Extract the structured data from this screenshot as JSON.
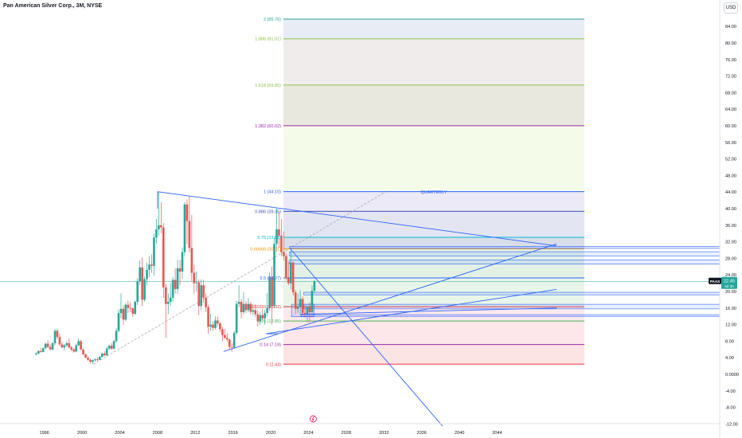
{
  "header": {
    "title": "Pan American Silver Corp., 3M, NYSE",
    "currency": "USD"
  },
  "price_label": {
    "ticker": "PAAS",
    "price": "22.45",
    "countdown": "4d 3h"
  },
  "colors": {
    "up": "#26a69a",
    "down": "#ef5350",
    "trendline": "#2962ff",
    "price_line": "#26a69a"
  },
  "chart_data": {
    "type": "candlestick",
    "interval": "3M",
    "ylim": [
      -12,
      88
    ],
    "yticks": [
      "84.00",
      "80.00",
      "76.00",
      "72.00",
      "68.00",
      "64.00",
      "60.00",
      "56.00",
      "52.00",
      "48.00",
      "44.00",
      "40.00",
      "36.00",
      "32.00",
      "28.00",
      "24.00",
      "20.00",
      "16.00",
      "12.00",
      "8.00",
      "4.00",
      "0.0000",
      "-4.00",
      "-8.00",
      "-12.00"
    ],
    "xticks": [
      "1996",
      "2000",
      "2004",
      "2008",
      "2012",
      "2016",
      "2020",
      "2024",
      "2028",
      "2032",
      "2036",
      "2040",
      "2044"
    ],
    "x_range": [
      1991.3,
      2050.3
    ],
    "fib_label": "QUARTERLY",
    "fib_levels": [
      {
        "label": "0 (2.44)",
        "value": 2.44,
        "color": "#f23645",
        "fill": "#fce4e4"
      },
      {
        "label": "0.14 (7.19)",
        "value": 7.19,
        "color": "#9c27b0",
        "fill": "#fde7ea"
      },
      {
        "label": "0.25 (12.85)",
        "value": 12.85,
        "color": "#4caf50",
        "fill": "#fbe9ec"
      },
      {
        "label": "0.333333 (16.32)",
        "value": 16.32,
        "color": "#e53935",
        "fill": "#e8f5e9"
      },
      {
        "label": "0.5 (23.27)",
        "value": 23.27,
        "color": "#2962ff",
        "fill": "#e3f1e5"
      },
      {
        "label": "0.66666 (30.31)",
        "value": 30.31,
        "color": "#ff9800",
        "fill": "#d9dde9"
      },
      {
        "label": "0.75 (33.08)",
        "value": 33.08,
        "color": "#00bcd4",
        "fill": "#e4e5f2"
      },
      {
        "label": "0.886 (39.35)",
        "value": 39.35,
        "color": "#3f51b5",
        "fill": "#ebeaf6"
      },
      {
        "label": "1 (44.10)",
        "value": 44.1,
        "color": "#2962ff",
        "fill": "#f4fbe9"
      },
      {
        "label": "1.382 (60.02)",
        "value": 60.02,
        "color": "#9c27b0",
        "fill": "#e9e8df"
      },
      {
        "label": "1.618 (69.85)",
        "value": 69.85,
        "color": "#8bc34a",
        "fill": "#f1ecec"
      },
      {
        "label": "1.886 (81.01)",
        "value": 81.01,
        "color": "#8bc34a",
        "fill": "#e8ecf5"
      },
      {
        "label": "2 (85.76)",
        "value": 85.76,
        "color": "#26a69a",
        "fill": ""
      }
    ],
    "last_price": 22.45,
    "candles": [
      [
        1995.125,
        4.8,
        5.4,
        4.6,
        5.0
      ],
      [
        1995.375,
        5.0,
        5.8,
        4.8,
        5.6
      ],
      [
        1995.625,
        5.6,
        6.4,
        5.2,
        5.4
      ],
      [
        1995.875,
        5.4,
        6.5,
        5.3,
        6.3
      ],
      [
        1996.125,
        6.3,
        7.6,
        6.0,
        7.4
      ],
      [
        1996.375,
        7.4,
        8.2,
        6.4,
        6.6
      ],
      [
        1996.625,
        6.6,
        7.2,
        5.8,
        6.0
      ],
      [
        1996.875,
        6.0,
        7.8,
        5.8,
        7.5
      ],
      [
        1997.125,
        7.5,
        11.0,
        7.0,
        10.5
      ],
      [
        1997.375,
        10.5,
        11.0,
        8.5,
        9.0
      ],
      [
        1997.625,
        9.0,
        9.8,
        6.9,
        7.2
      ],
      [
        1997.875,
        7.2,
        7.8,
        6.3,
        6.5
      ],
      [
        1998.125,
        6.5,
        7.3,
        5.8,
        7.0
      ],
      [
        1998.375,
        7.0,
        8.0,
        6.6,
        7.5
      ],
      [
        1998.625,
        7.5,
        8.6,
        6.2,
        6.5
      ],
      [
        1998.875,
        6.5,
        6.9,
        5.6,
        6.0
      ],
      [
        1999.125,
        6.0,
        6.4,
        5.2,
        5.5
      ],
      [
        1999.375,
        5.5,
        7.4,
        5.3,
        7.0
      ],
      [
        1999.625,
        7.0,
        8.6,
        6.8,
        8.0
      ],
      [
        1999.875,
        8.0,
        8.3,
        5.8,
        6.0
      ],
      [
        2000.125,
        6.0,
        6.2,
        4.6,
        4.8
      ],
      [
        2000.375,
        4.8,
        5.0,
        3.9,
        4.0
      ],
      [
        2000.625,
        4.0,
        4.4,
        3.2,
        3.5
      ],
      [
        2000.875,
        3.5,
        3.8,
        2.6,
        3.0
      ],
      [
        2001.125,
        3.0,
        3.6,
        2.44,
        3.4
      ],
      [
        2001.375,
        3.4,
        3.9,
        3.0,
        3.6
      ],
      [
        2001.625,
        3.6,
        4.1,
        3.2,
        3.5
      ],
      [
        2001.875,
        3.5,
        4.4,
        3.4,
        4.2
      ],
      [
        2002.125,
        4.2,
        5.3,
        4.0,
        5.0
      ],
      [
        2002.375,
        5.0,
        5.6,
        4.4,
        4.6
      ],
      [
        2002.625,
        4.6,
        6.6,
        4.4,
        6.2
      ],
      [
        2002.875,
        6.2,
        7.2,
        5.9,
        6.9
      ],
      [
        2003.125,
        6.9,
        7.6,
        5.9,
        6.2
      ],
      [
        2003.375,
        6.2,
        8.3,
        6.0,
        8.0
      ],
      [
        2003.625,
        8.0,
        11.2,
        7.6,
        10.5
      ],
      [
        2003.875,
        10.5,
        15.6,
        10.2,
        14.8
      ],
      [
        2004.125,
        14.8,
        19.5,
        13.5,
        15.8
      ],
      [
        2004.375,
        15.8,
        16.6,
        12.0,
        13.2
      ],
      [
        2004.625,
        13.2,
        17.2,
        12.8,
        16.8
      ],
      [
        2004.875,
        16.8,
        17.8,
        14.8,
        16.0
      ],
      [
        2005.125,
        16.0,
        17.4,
        15.0,
        15.9
      ],
      [
        2005.375,
        15.9,
        16.2,
        13.8,
        14.6
      ],
      [
        2005.625,
        14.6,
        17.8,
        14.3,
        17.5
      ],
      [
        2005.875,
        17.5,
        23.2,
        16.8,
        22.5
      ],
      [
        2006.125,
        22.5,
        27.5,
        21.5,
        25.8
      ],
      [
        2006.375,
        25.8,
        28.2,
        16.5,
        18.0
      ],
      [
        2006.625,
        18.0,
        23.6,
        17.5,
        23.0
      ],
      [
        2006.875,
        23.0,
        27.0,
        21.5,
        25.2
      ],
      [
        2007.125,
        25.2,
        28.5,
        23.5,
        26.5
      ],
      [
        2007.375,
        26.5,
        29.0,
        24.5,
        26.2
      ],
      [
        2007.625,
        26.2,
        34.0,
        23.8,
        33.0
      ],
      [
        2007.875,
        33.0,
        37.5,
        31.5,
        35.0
      ],
      [
        2008.125,
        35.0,
        44.1,
        33.5,
        36.0
      ],
      [
        2008.375,
        36.0,
        41.6,
        34.0,
        35.5
      ],
      [
        2008.625,
        35.5,
        36.5,
        18.5,
        21.0
      ],
      [
        2008.875,
        21.0,
        21.8,
        8.8,
        17.0
      ],
      [
        2009.125,
        17.0,
        19.6,
        14.5,
        17.5
      ],
      [
        2009.375,
        17.5,
        22.0,
        16.5,
        18.5
      ],
      [
        2009.625,
        18.5,
        23.5,
        17.5,
        22.8
      ],
      [
        2009.875,
        22.8,
        25.6,
        19.5,
        20.6
      ],
      [
        2010.125,
        20.6,
        27.6,
        19.5,
        25.6
      ],
      [
        2010.375,
        25.6,
        27.6,
        21.5,
        24.8
      ],
      [
        2010.625,
        24.8,
        30.6,
        23.0,
        29.5
      ],
      [
        2010.875,
        29.5,
        41.6,
        28.5,
        41.0
      ],
      [
        2011.125,
        41.0,
        42.2,
        31.5,
        37.0
      ],
      [
        2011.375,
        37.0,
        43.0,
        29.5,
        30.5
      ],
      [
        2011.625,
        30.5,
        38.5,
        22.5,
        24.5
      ],
      [
        2011.875,
        24.5,
        26.5,
        19.5,
        22.0
      ],
      [
        2012.125,
        22.0,
        24.8,
        20.0,
        22.2
      ],
      [
        2012.375,
        22.2,
        22.9,
        14.3,
        16.5
      ],
      [
        2012.625,
        16.5,
        22.9,
        15.5,
        21.5
      ],
      [
        2012.875,
        21.5,
        22.8,
        17.2,
        18.5
      ],
      [
        2013.125,
        18.5,
        19.6,
        15.0,
        16.2
      ],
      [
        2013.375,
        16.2,
        16.8,
        9.8,
        11.5
      ],
      [
        2013.625,
        11.5,
        14.6,
        10.5,
        12.0
      ],
      [
        2013.875,
        12.0,
        12.9,
        10.5,
        11.2
      ],
      [
        2014.125,
        11.2,
        14.0,
        10.8,
        13.0
      ],
      [
        2014.375,
        13.0,
        13.9,
        11.6,
        12.3
      ],
      [
        2014.625,
        12.3,
        12.6,
        10.2,
        10.9
      ],
      [
        2014.875,
        10.9,
        11.4,
        8.0,
        9.5
      ],
      [
        2015.125,
        9.5,
        11.0,
        8.5,
        8.8
      ],
      [
        2015.375,
        8.8,
        10.0,
        7.8,
        8.4
      ],
      [
        2015.625,
        8.4,
        8.6,
        6.0,
        6.6
      ],
      [
        2015.875,
        6.6,
        7.5,
        5.5,
        6.5
      ],
      [
        2016.125,
        6.5,
        10.5,
        6.2,
        10.0
      ],
      [
        2016.375,
        10.0,
        17.8,
        9.5,
        17.0
      ],
      [
        2016.625,
        17.0,
        21.5,
        16.2,
        17.5
      ],
      [
        2016.875,
        17.5,
        18.2,
        13.5,
        15.0
      ],
      [
        2017.125,
        15.0,
        19.8,
        14.5,
        17.0
      ],
      [
        2017.375,
        17.0,
        17.6,
        14.8,
        15.5
      ],
      [
        2017.625,
        15.5,
        18.4,
        15.0,
        17.0
      ],
      [
        2017.875,
        17.0,
        17.5,
        14.5,
        15.1
      ],
      [
        2018.125,
        15.1,
        17.0,
        14.2,
        15.5
      ],
      [
        2018.375,
        15.5,
        16.9,
        13.8,
        14.5
      ],
      [
        2018.625,
        14.5,
        15.4,
        11.5,
        12.8
      ],
      [
        2018.875,
        12.8,
        15.0,
        11.9,
        14.3
      ],
      [
        2019.125,
        14.3,
        15.8,
        13.0,
        13.5
      ],
      [
        2019.375,
        13.5,
        15.6,
        12.0,
        14.8
      ],
      [
        2019.625,
        14.8,
        19.6,
        14.0,
        16.0
      ],
      [
        2019.875,
        16.0,
        24.6,
        15.3,
        23.5
      ],
      [
        2020.125,
        23.5,
        26.0,
        12.0,
        16.5
      ],
      [
        2020.375,
        16.5,
        33.0,
        16.0,
        31.5
      ],
      [
        2020.625,
        31.5,
        40.0,
        29.5,
        35.0
      ],
      [
        2020.875,
        35.0,
        39.2,
        30.5,
        33.5
      ],
      [
        2021.125,
        33.5,
        37.5,
        28.5,
        29.5
      ],
      [
        2021.375,
        29.5,
        34.5,
        27.5,
        28.5
      ],
      [
        2021.625,
        28.5,
        29.0,
        22.8,
        23.2
      ],
      [
        2021.875,
        23.2,
        27.2,
        21.5,
        22.0
      ],
      [
        2022.125,
        22.0,
        29.8,
        20.5,
        27.0
      ],
      [
        2022.375,
        27.0,
        27.2,
        19.0,
        19.8
      ],
      [
        2022.625,
        19.8,
        20.4,
        14.5,
        15.8
      ],
      [
        2022.875,
        15.8,
        19.5,
        14.8,
        16.3
      ],
      [
        2023.125,
        16.3,
        20.3,
        14.2,
        18.2
      ],
      [
        2023.375,
        18.2,
        18.8,
        14.5,
        14.8
      ],
      [
        2023.625,
        14.8,
        16.6,
        13.7,
        14.6
      ],
      [
        2023.875,
        14.6,
        16.4,
        12.6,
        16.4
      ],
      [
        2024.125,
        16.4,
        17.4,
        12.5,
        15.0
      ],
      [
        2024.375,
        15.0,
        21.5,
        14.2,
        20.2
      ],
      [
        2024.625,
        20.2,
        22.8,
        19.6,
        22.45
      ]
    ]
  }
}
